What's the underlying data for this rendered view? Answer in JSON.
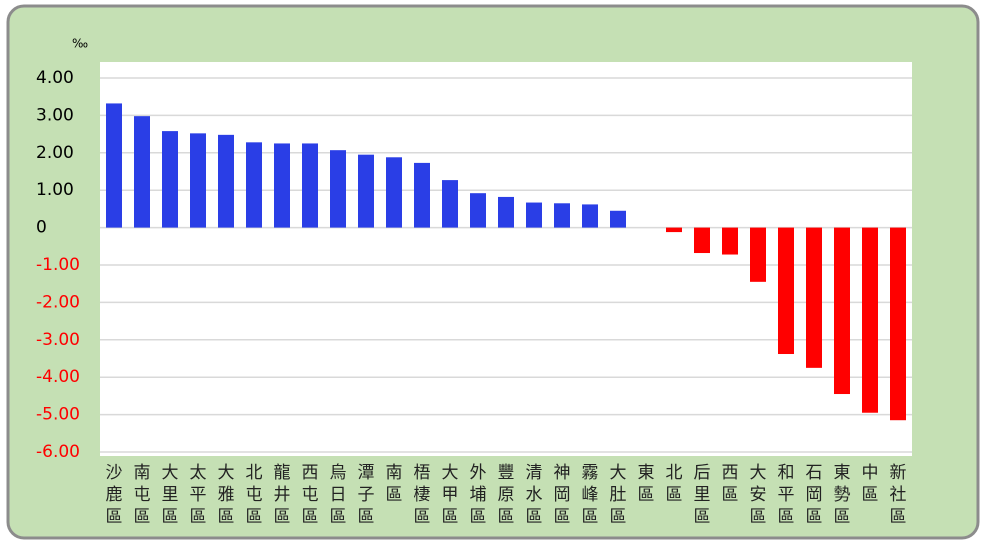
{
  "chart_data": {
    "type": "bar",
    "y_label": "‰",
    "categories": [
      "沙鹿區",
      "南屯區",
      "大里區",
      "太平區",
      "大雅區",
      "北屯區",
      "龍井區",
      "西屯區",
      "烏日區",
      "潭子區",
      "南區",
      "梧棲區",
      "大甲區",
      "外埔區",
      "豐原區",
      "清水區",
      "神岡區",
      "霧峰區",
      "大肚區",
      "東區",
      "北區",
      "后里區",
      "西區",
      "大安區",
      "和平區",
      "石岡區",
      "東勢區",
      "中區",
      "新社區"
    ],
    "values": [
      3.32,
      2.98,
      2.58,
      2.52,
      2.48,
      2.28,
      2.25,
      2.25,
      2.07,
      1.95,
      1.88,
      1.73,
      1.27,
      0.92,
      0.82,
      0.67,
      0.65,
      0.62,
      0.45,
      0,
      -0.12,
      -0.68,
      -0.72,
      -1.45,
      -3.38,
      -3.75,
      -4.45,
      -4.95,
      -5.15
    ],
    "color": "#2a3ee6",
    "negative_color": "#ff0000",
    "ylim": [
      -6,
      4
    ],
    "yticks": [
      {
        "value": 4,
        "label": "4.00"
      },
      {
        "value": 3,
        "label": "3.00"
      },
      {
        "value": 2,
        "label": "2.00"
      },
      {
        "value": 1,
        "label": "1.00"
      },
      0,
      {
        "value": -1,
        "label": "-1.00"
      },
      {
        "value": -2,
        "label": "-2.00"
      },
      {
        "value": -3,
        "label": "-3.00"
      },
      {
        "value": -4,
        "label": "-4.00"
      },
      {
        "value": -5,
        "label": "-5.00"
      },
      {
        "value": -6,
        "label": "-6.00"
      }
    ],
    "grid": true
  }
}
